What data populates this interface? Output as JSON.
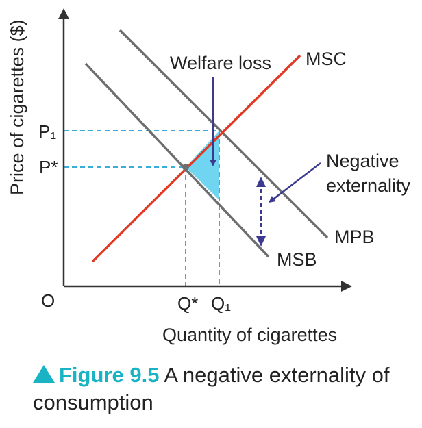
{
  "diagram": {
    "y_axis_label": "Price of cigarettes ($)",
    "x_axis_label": "Quantity of cigarettes",
    "origin_label": "O",
    "price_labels": {
      "p1": "P₁",
      "p_star": "P*"
    },
    "quantity_labels": {
      "q_star": "Q*",
      "q1": "Q₁"
    },
    "curves": {
      "msc": "MSC",
      "mpb": "MPB",
      "msb": "MSB"
    },
    "annotations": {
      "welfare_loss": "Welfare loss",
      "negative_externality_line1": "Negative",
      "negative_externality_line2": "externality"
    },
    "colors": {
      "msc": "#e03a25",
      "benefit_curves": "#6d6e70",
      "dashed_guides": "#3aaed8",
      "welfare_loss_fill": "#5fd0ef",
      "arrows": "#3c3a8f",
      "axes": "#333333"
    }
  },
  "caption": {
    "figure_number": "Figure 9.5",
    "text": "A negative externality of consumption"
  }
}
